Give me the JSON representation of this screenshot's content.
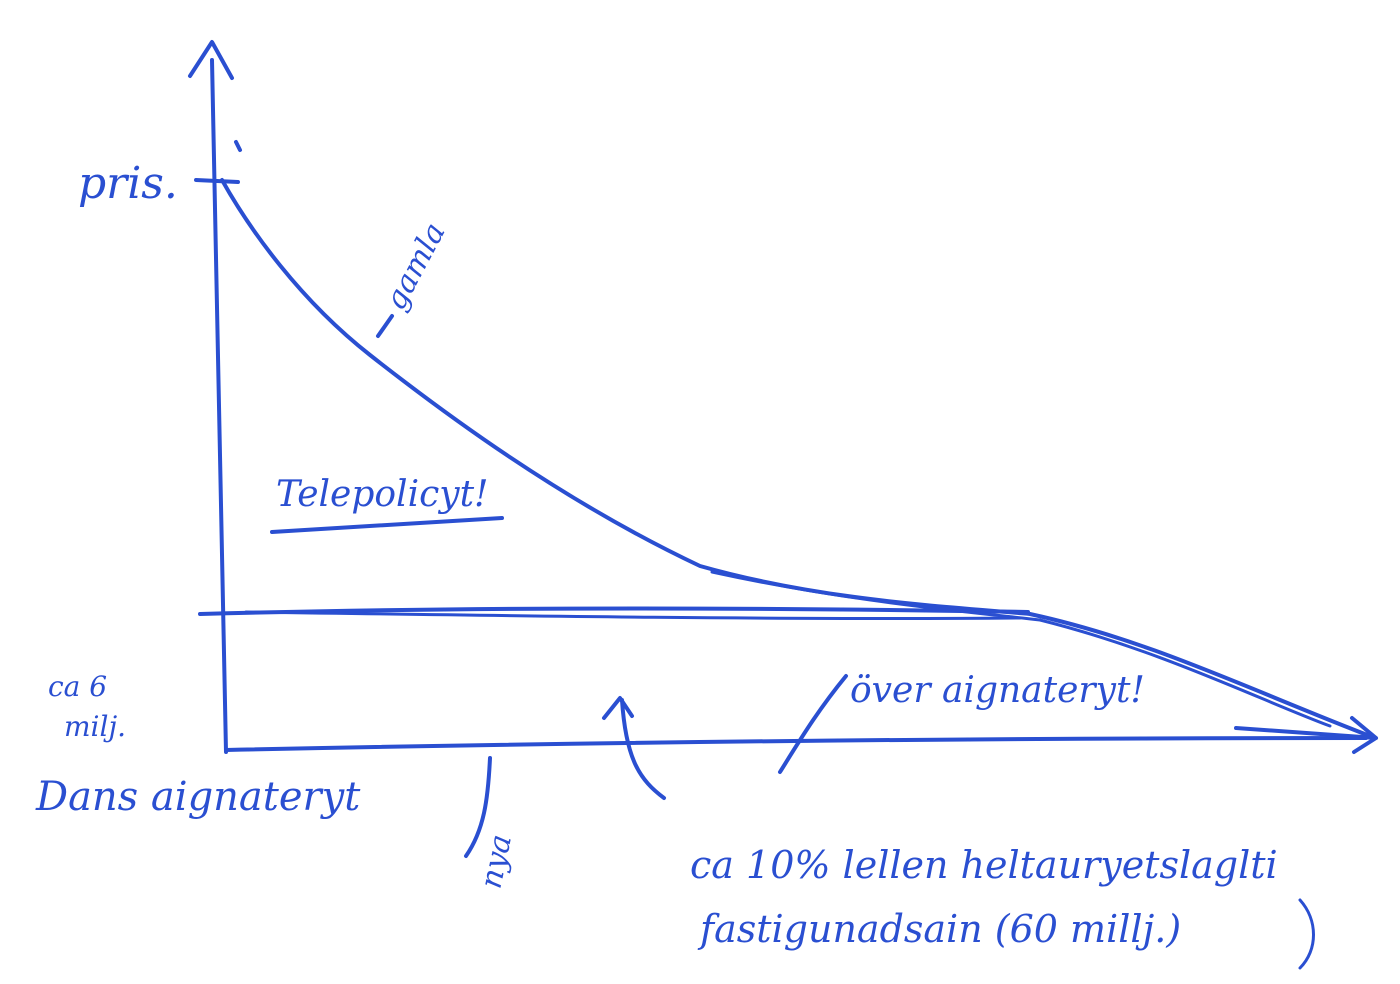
{
  "sketch": {
    "ink_color": "#2a4fd1",
    "paper_color": "#ffffff"
  },
  "labels": {
    "y_axis": "pris.",
    "old_curve": "gamla",
    "cost_area": "Telepolicyt!",
    "left_note_line1": "ca 6",
    "left_note_line2": "milj.",
    "left_note_line3": "Dans aignateryt",
    "ny_marker": "nya",
    "right_region": "över aignateryt!",
    "bottom_note_line1": "ca 10% lellen heltauryetslaglti",
    "bottom_note_line2": "fastigunadsain (60 millj.)"
  }
}
